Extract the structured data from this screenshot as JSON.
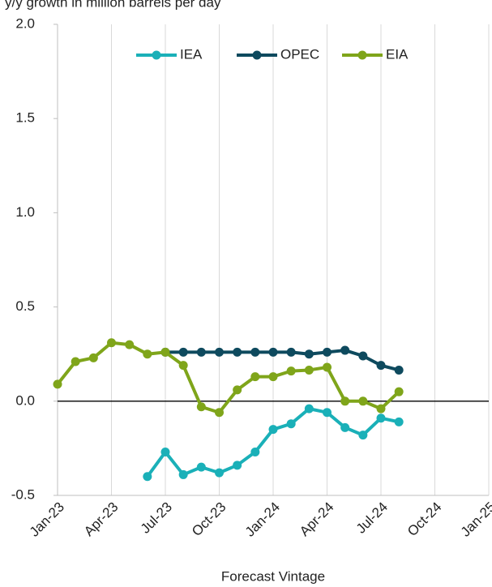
{
  "chart_data": {
    "type": "line",
    "title": "y/y growth in million barrels per day",
    "x_label": "Forecast Vintage",
    "categories": [
      "Jan-23",
      null,
      null,
      "Apr-23",
      null,
      null,
      "Jul-23",
      null,
      null,
      "Oct-23",
      null,
      null,
      "Jan-24",
      null,
      null,
      "Apr-24",
      null,
      null,
      "Jul-24",
      null,
      null,
      "Oct-24",
      null,
      null,
      "Jan-25"
    ],
    "series": [
      {
        "name": "IEA",
        "color": "#1ab0b8",
        "values": [
          null,
          null,
          null,
          null,
          null,
          -0.4,
          -0.27,
          -0.39,
          -0.35,
          -0.38,
          -0.34,
          -0.27,
          -0.15,
          -0.12,
          -0.04,
          -0.06,
          -0.14,
          -0.18,
          -0.09,
          -0.11,
          null,
          null,
          null,
          null,
          null
        ]
      },
      {
        "name": "OPEC",
        "color": "#0e4a5e",
        "values": [
          null,
          null,
          null,
          null,
          null,
          null,
          0.26,
          0.26,
          0.26,
          0.26,
          0.26,
          0.26,
          0.26,
          0.26,
          0.25,
          0.26,
          0.27,
          0.24,
          0.19,
          0.165,
          null,
          null,
          null,
          null,
          null
        ]
      },
      {
        "name": "EIA",
        "color": "#7fa51a",
        "values": [
          0.09,
          0.21,
          0.23,
          0.31,
          0.3,
          0.25,
          0.26,
          0.19,
          -0.03,
          -0.06,
          0.06,
          0.13,
          0.13,
          0.16,
          0.165,
          0.18,
          0.0,
          0.0,
          -0.04,
          0.05,
          null,
          null,
          null,
          null,
          null
        ]
      }
    ],
    "ylim": [
      -0.5,
      2.0
    ],
    "yticks": [
      {
        "value": -0.5,
        "label": "-0.5"
      },
      {
        "value": 0,
        "label": "0.0"
      },
      0.5,
      {
        "value": 1,
        "label": "1.0"
      },
      1.5,
      {
        "value": 2,
        "label": "2.0"
      }
    ],
    "legend": "top"
  }
}
